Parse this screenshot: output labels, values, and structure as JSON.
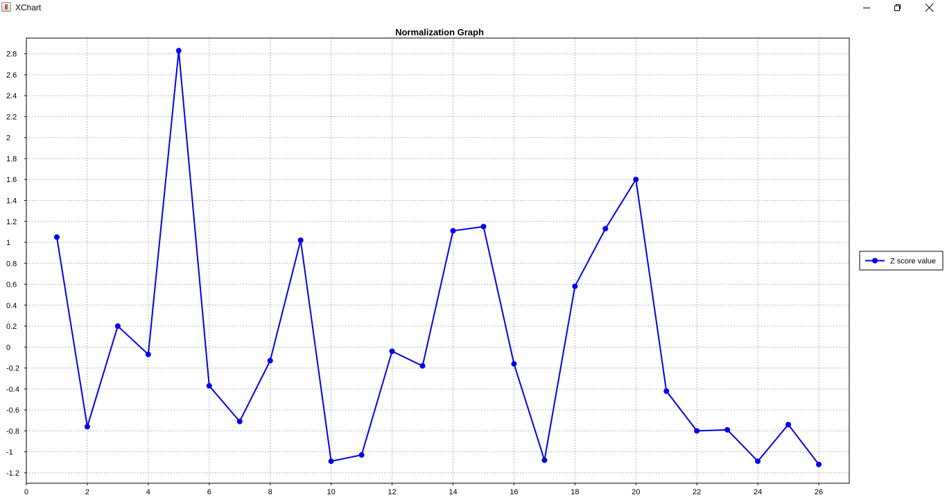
{
  "window": {
    "title": "XChart",
    "icon": "java-cup-icon",
    "controls": [
      "minimize-icon",
      "maximize-icon",
      "close-icon"
    ]
  },
  "chart_data": {
    "type": "line",
    "title": "Normalization Graph",
    "xlabel": "",
    "ylabel": "",
    "xlim": [
      0,
      27
    ],
    "ylim": [
      -1.3,
      2.95
    ],
    "x_ticks": [
      0,
      2,
      4,
      6,
      8,
      10,
      12,
      14,
      16,
      18,
      20,
      22,
      24,
      26
    ],
    "y_ticks": [
      -1.2,
      -1,
      -0.8,
      -0.6,
      -0.4,
      -0.2,
      0,
      0.2,
      0.4,
      0.6,
      0.8,
      1,
      1.2,
      1.4,
      1.6,
      1.8,
      2,
      2.2,
      2.4,
      2.6,
      2.8
    ],
    "grid": true,
    "legend_position": "right",
    "colors": {
      "series": "#0000ee",
      "grid": "#b8b8b8",
      "axis": "#000000"
    },
    "series": [
      {
        "name": "Z score value",
        "marker": "circle",
        "x": [
          1,
          2,
          3,
          4,
          5,
          6,
          7,
          8,
          9,
          10,
          11,
          12,
          13,
          14,
          15,
          16,
          17,
          18,
          19,
          20,
          21,
          22,
          23,
          24,
          25,
          26
        ],
        "y": [
          1.05,
          -0.76,
          0.2,
          -0.07,
          2.83,
          -0.37,
          -0.71,
          -0.13,
          1.02,
          -1.09,
          -1.03,
          -0.04,
          -0.18,
          1.11,
          1.15,
          -0.16,
          -1.08,
          0.58,
          1.13,
          1.6,
          -0.42,
          -0.8,
          -0.79,
          -1.09,
          -0.74,
          -1.12
        ]
      }
    ]
  }
}
